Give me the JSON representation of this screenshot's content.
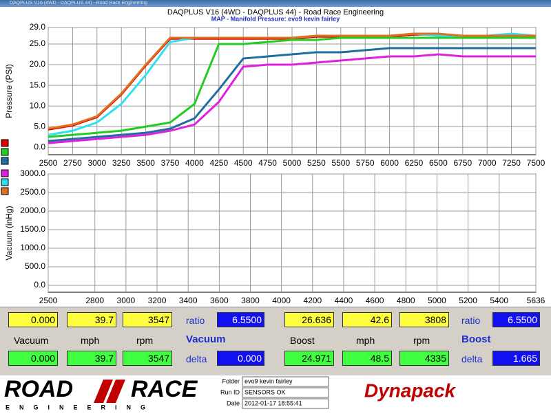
{
  "window": {
    "title": "DAQPLUS V16 (4WD - DAQPLUS 44) - Road Race Engineering"
  },
  "header": {
    "title": "DAQPLUS V16 (4WD - DAQPLUS 44) - Road Race Engineering",
    "subtitle": "MAP - Manifold Pressure: evo9 kevin fairley"
  },
  "chart_data": [
    {
      "type": "line",
      "y_label": "Pressure (PSI)",
      "x": [
        2500,
        2750,
        3000,
        3250,
        3500,
        3750,
        4000,
        4250,
        4500,
        4750,
        5000,
        5250,
        5500,
        5750,
        6000,
        6250,
        6500,
        6750,
        7000,
        7250,
        7500
      ],
      "xlim": [
        2500,
        7500
      ],
      "xticks": [
        2500,
        2750,
        3000,
        3250,
        3500,
        3750,
        4000,
        4250,
        4500,
        4750,
        5000,
        5250,
        5500,
        5750,
        6000,
        6250,
        6500,
        6750,
        7000,
        7250,
        7500
      ],
      "ylim": [
        -1.8,
        29
      ],
      "yticks": [
        {
          "value": 0,
          "label": "0.0"
        },
        {
          "value": 5,
          "label": "5.0"
        },
        {
          "value": 10,
          "label": "10.0"
        },
        {
          "value": 15,
          "label": "15.0"
        },
        {
          "value": 20,
          "label": "20.0"
        },
        {
          "value": 25,
          "label": "25.0"
        },
        {
          "value": 29,
          "label": "29.0"
        }
      ],
      "grid": true,
      "series": [
        {
          "color": "#e00000",
          "values": [
            4.3,
            5.3,
            7.3,
            12.8,
            19.8,
            26.3,
            26.3,
            26.3,
            26.3,
            26.3,
            26.3,
            26.8,
            26.8,
            26.8,
            26.8,
            27.3,
            27.3,
            26.8,
            26.8,
            26.8,
            26.8
          ]
        },
        {
          "color": "#22cc22",
          "values": [
            2.5,
            3,
            3.5,
            4,
            5,
            6,
            10.5,
            25,
            25,
            25.5,
            26,
            26,
            26.5,
            26.5,
            26.5,
            26.5,
            26.5,
            26.5,
            26.5,
            26.5,
            26.5
          ]
        },
        {
          "color": "#1f6e9e",
          "values": [
            1.5,
            2,
            2.5,
            3,
            3.5,
            4.5,
            7,
            14,
            21.5,
            22,
            22.5,
            23,
            23,
            23.5,
            24,
            24,
            24,
            24,
            24,
            24,
            24
          ]
        },
        {
          "color": "#e020e0",
          "values": [
            1,
            1.5,
            2,
            2.5,
            3,
            4,
            5.5,
            11,
            19.5,
            20,
            20,
            20.5,
            21,
            21.5,
            22,
            22,
            22.5,
            22,
            22,
            22,
            22
          ]
        },
        {
          "color": "#30e0f0",
          "values": [
            3,
            4,
            6,
            10.5,
            17.5,
            25.5,
            26.5,
            26.5,
            26.5,
            26.5,
            26.5,
            27,
            27,
            27,
            27,
            27.5,
            27,
            27,
            27,
            27.5,
            27
          ]
        },
        {
          "color": "#e07020",
          "values": [
            4.5,
            5.5,
            7.5,
            13,
            20,
            26.5,
            26.5,
            26.5,
            26.5,
            26.5,
            26.5,
            27,
            27,
            27,
            27,
            27.5,
            27.5,
            27,
            27,
            27,
            27
          ]
        }
      ]
    },
    {
      "type": "line",
      "y_label": "Vacuum (inHg)",
      "xlim": [
        2500,
        5636
      ],
      "xticks": [
        2500,
        2800,
        3000,
        3200,
        3400,
        3600,
        3800,
        4000,
        4200,
        4400,
        4600,
        4800,
        5000,
        5200,
        5400,
        5636
      ],
      "ylim": [
        -185,
        3000
      ],
      "yticks": [
        {
          "value": 0,
          "label": "0.0"
        },
        {
          "value": 500,
          "label": "500.0"
        },
        {
          "value": 1000,
          "label": "1000.0"
        },
        {
          "value": 1500,
          "label": "1500.0"
        },
        {
          "value": 2000,
          "label": "2000.0"
        },
        {
          "value": 2500,
          "label": "2500.0"
        },
        {
          "value": 3000,
          "label": "3000.0"
        }
      ],
      "grid": true
    }
  ],
  "panel": {
    "left": {
      "top": [
        "0.000",
        "39.7",
        "3547"
      ],
      "top_label": "ratio",
      "top_value": "6.5500",
      "labels": [
        "Vacuum",
        "mph",
        "rpm"
      ],
      "title": "Vacuum",
      "bottom": [
        "0.000",
        "39.7",
        "3547"
      ],
      "bottom_label": "delta",
      "bottom_value": "0.000"
    },
    "right": {
      "top": [
        "26.636",
        "42.6",
        "3808"
      ],
      "top_label": "ratio",
      "top_value": "6.5500",
      "labels": [
        "Boost",
        "mph",
        "rpm"
      ],
      "title": "Boost",
      "bottom": [
        "24.971",
        "48.5",
        "4335"
      ],
      "bottom_label": "delta",
      "bottom_value": "1.665"
    }
  },
  "footer": {
    "logo_left": "ROAD",
    "logo_right": "RACE",
    "logo_sub": "ENGINEERING",
    "fields": [
      {
        "label": "Folder",
        "value": "evo9 kevin fairley"
      },
      {
        "label": "Run ID",
        "value": "SENSORS OK"
      },
      {
        "label": "Date",
        "value": "2012-01-17 18:55:41"
      }
    ],
    "brand": "Dynapack"
  }
}
